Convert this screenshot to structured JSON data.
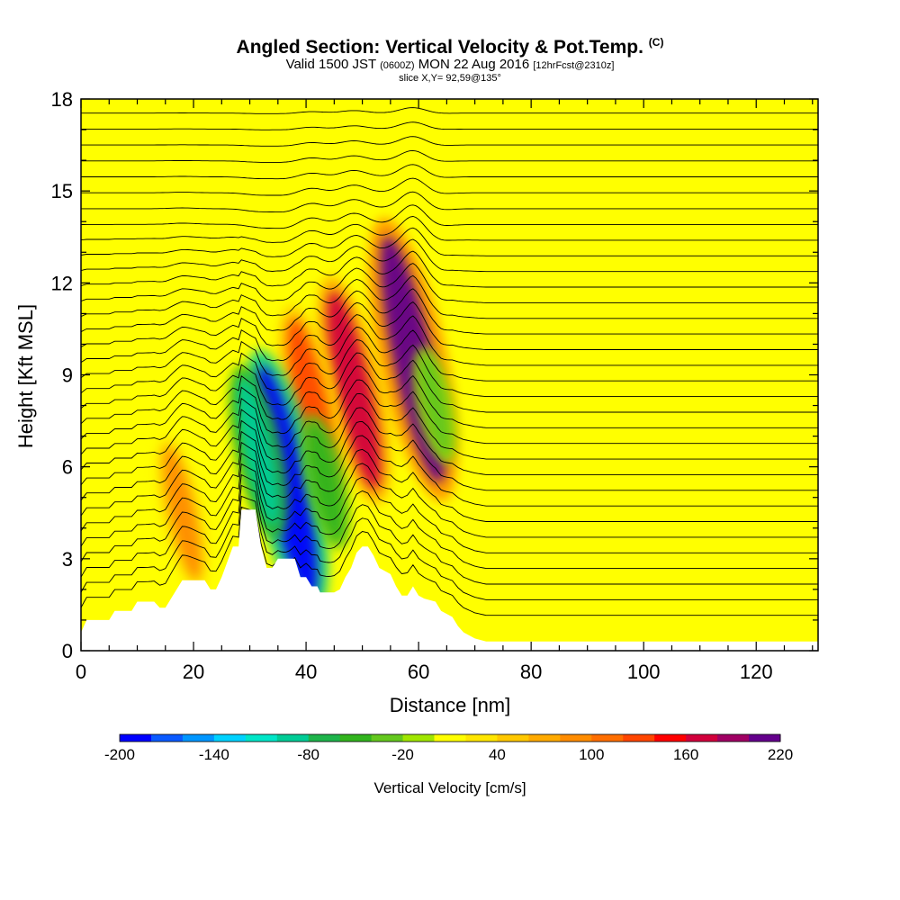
{
  "header": {
    "title_main": "Angled Section: Vertical Velocity & Pot.Temp.",
    "title_tag": "(C)",
    "valid_a": "Valid 1500 JST",
    "valid_b": "(0600Z)",
    "valid_c": "MON 22 Aug 2016",
    "valid_d": "[12hrFcst@2310z]",
    "slice": "slice X,Y= 92,59@135°"
  },
  "chart_data": {
    "type": "heatmap",
    "title": "Angled Section: Vertical Velocity & Pot.Temp. (C)",
    "xlabel": "Distance [nm]",
    "ylabel": "Height [Kft MSL]",
    "xlim": [
      0,
      131
    ],
    "ylim": [
      0,
      18
    ],
    "x_ticks": [
      0,
      20,
      40,
      60,
      80,
      100,
      120
    ],
    "y_ticks": [
      0,
      3,
      6,
      9,
      12,
      15,
      18
    ],
    "grid": false,
    "colorbar": {
      "label": "Vertical Velocity [cm/s]",
      "tick_labels": [
        "-200",
        "-140",
        "-80",
        "-20",
        "40",
        "100",
        "160",
        "220"
      ],
      "levels": [
        -200,
        -180,
        -160,
        -140,
        -120,
        -100,
        -80,
        -60,
        -40,
        -20,
        0,
        20,
        40,
        60,
        80,
        100,
        120,
        140,
        160,
        180,
        200,
        220
      ],
      "colors": [
        "#0000ff",
        "#0a5aff",
        "#0096ff",
        "#00d2ff",
        "#00e6c8",
        "#00cc96",
        "#1eb44b",
        "#32b41e",
        "#64c81e",
        "#a0e600",
        "#ffff00",
        "#ffe600",
        "#ffc800",
        "#ffaa00",
        "#ff8c00",
        "#ff6e00",
        "#ff4600",
        "#ff0000",
        "#d2003c",
        "#a00064",
        "#64008c"
      ]
    },
    "background_value": 10,
    "features": [
      {
        "name": "strong updraft",
        "x": 59,
        "y": 9.5,
        "value": 220
      },
      {
        "name": "updraft",
        "x": 48.5,
        "y": 8.5,
        "value": 160
      },
      {
        "name": "updraft",
        "x": 41,
        "y": 8.0,
        "value": 130
      },
      {
        "name": "weak updraft",
        "x": 18,
        "y": 4.5,
        "value": 80
      },
      {
        "name": "downdraft",
        "x": 36.5,
        "y": 5.5,
        "value": -200
      },
      {
        "name": "downdraft",
        "x": 31.5,
        "y": 6.5,
        "value": -100
      },
      {
        "name": "downdraft",
        "x": 43.5,
        "y": 5.5,
        "value": -60
      },
      {
        "name": "downdraft",
        "x": 63,
        "y": 8.0,
        "value": -40
      }
    ],
    "terrain_kft": [
      [
        0,
        0.6
      ],
      [
        1,
        1.0
      ],
      [
        5,
        1.0
      ],
      [
        6,
        1.3
      ],
      [
        9,
        1.3
      ],
      [
        10,
        1.6
      ],
      [
        13,
        1.6
      ],
      [
        14,
        1.4
      ],
      [
        15,
        1.4
      ],
      [
        16,
        1.7
      ],
      [
        17,
        2.0
      ],
      [
        18,
        2.3
      ],
      [
        22,
        2.3
      ],
      [
        23,
        2.0
      ],
      [
        24,
        2.0
      ],
      [
        25,
        2.4
      ],
      [
        27,
        3.4
      ],
      [
        28,
        3.4
      ],
      [
        28.5,
        4.6
      ],
      [
        31,
        4.6
      ],
      [
        32,
        3.4
      ],
      [
        33,
        2.7
      ],
      [
        34,
        2.7
      ],
      [
        35,
        3.0
      ],
      [
        38,
        3.0
      ],
      [
        39,
        2.4
      ],
      [
        40,
        2.4
      ],
      [
        41,
        2.1
      ],
      [
        42,
        2.1
      ],
      [
        42.5,
        1.9
      ],
      [
        45,
        1.9
      ],
      [
        46,
        2.0
      ],
      [
        47,
        2.4
      ],
      [
        48,
        2.7
      ],
      [
        49,
        3.2
      ],
      [
        50,
        3.4
      ],
      [
        51,
        3.4
      ],
      [
        52,
        3.1
      ],
      [
        53,
        2.7
      ],
      [
        55,
        2.5
      ],
      [
        56,
        2.1
      ],
      [
        57,
        1.8
      ],
      [
        58,
        1.8
      ],
      [
        59,
        2.1
      ],
      [
        60,
        1.8
      ],
      [
        61,
        1.7
      ],
      [
        63,
        1.6
      ],
      [
        64,
        1.3
      ],
      [
        66,
        1.1
      ],
      [
        67,
        0.8
      ],
      [
        68,
        0.6
      ],
      [
        70,
        0.4
      ],
      [
        72,
        0.3
      ],
      [
        131,
        0.3
      ]
    ]
  }
}
